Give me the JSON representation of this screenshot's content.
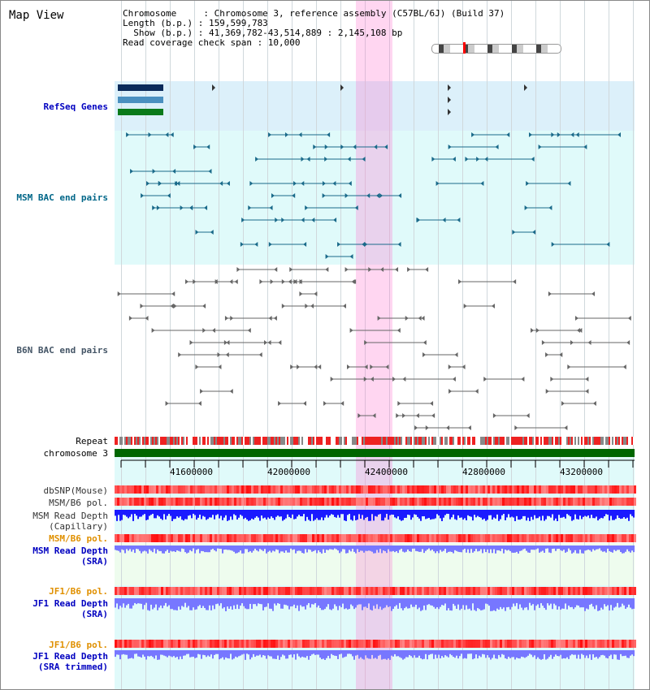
{
  "map": {
    "title": "Map View",
    "header_lines": [
      "Chromosome     : Chromosome 3, reference assembly (C57BL/6J) (Build 37)",
      "Length (b.p.) : 159,599,783",
      "  Show (b.p.) : 41,369,782-43,514,889 : 2,145,108 bp",
      "Read coverage check span : 10,000"
    ]
  },
  "tracks": {
    "refseq": "RefSeq Genes",
    "msm_bac": "MSM BAC end pairs",
    "b6n_bac": "B6N BAC end pairs",
    "repeat": "Repeat",
    "chromosome": "chromosome 3",
    "dbsnp": "dbSNP(Mouse)",
    "msm_b6_pol": "MSM/B6 pol.",
    "msm_rd_cap_1": "MSM Read Depth",
    "msm_rd_cap_2": "(Capillary)",
    "msm_b6_pol_sra": "MSM/B6 pol.",
    "msm_rd_sra_1": "MSM Read Depth",
    "msm_rd_sra_2": "(SRA)",
    "jf1_b6_pol": "JF1/B6 pol.",
    "jf1_rd_sra_1": "JF1 Read Depth",
    "jf1_rd_sra_2": "(SRA)",
    "jf1_b6_pol_trim": "JF1/B6 pol.",
    "jf1_rd_trim_1": "JF1 Read Depth",
    "jf1_rd_trim_2": "(SRA trimmed)"
  },
  "axis": {
    "ticks": [
      "41600000",
      "42000000",
      "42400000",
      "42800000",
      "43200000"
    ]
  },
  "colors": {
    "refseq_bg": "#dcf0fa",
    "msm_bac_bg": "#e0fafa",
    "light_green_bg": "#eefcee",
    "highlight": "#ffb4e6",
    "chromosome": "#006600",
    "msm_bac": "#1a6a8a",
    "b6n_bac": "#666666",
    "depth_capillary": "#1a1aff",
    "depth_sra": "#7777ff"
  }
}
